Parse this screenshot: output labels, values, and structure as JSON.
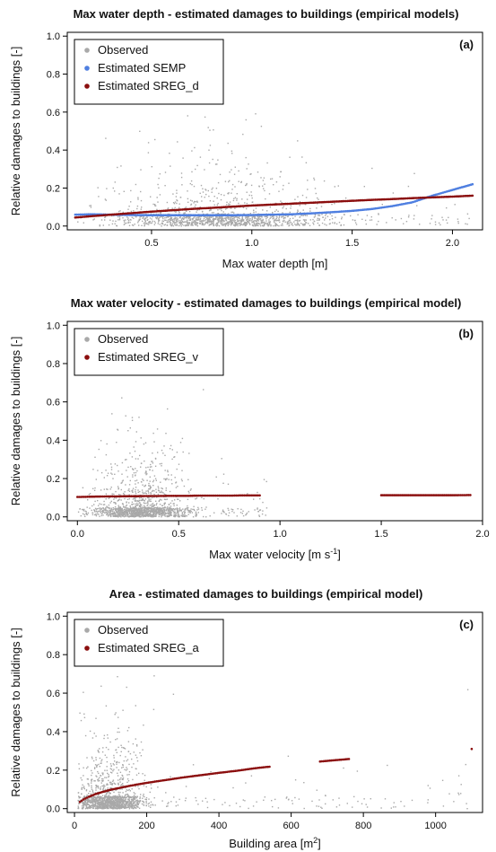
{
  "chart_data": [
    {
      "type": "scatter",
      "title": "Max water depth - estimated damages to buildings (empirical models)",
      "panel_label": "(a)",
      "xlabel": "Max water depth [m]",
      "xlabel_sup": "",
      "xlabel_tail": "",
      "ylabel": "Relative damages to buildings [-]",
      "xlim": [
        0.08,
        2.15
      ],
      "ylim": [
        -0.02,
        1.02
      ],
      "xticks": [
        0.5,
        1.0,
        1.5,
        2.0
      ],
      "xtick_labels": [
        "0.5",
        "1.0",
        "1.5",
        "2.0"
      ],
      "yticks": [
        0.0,
        0.2,
        0.4,
        0.6,
        0.8,
        1.0
      ],
      "ytick_labels": [
        "0.0",
        "0.2",
        "0.4",
        "0.6",
        "0.8",
        "1.0"
      ],
      "grid": false,
      "legend_position": "top-left",
      "series": [
        {
          "name": "Observed",
          "color": "#a9a9a9",
          "kind": "cloud",
          "cloud": {
            "n": 1500,
            "x_range": [
              0.12,
              2.1
            ],
            "x_center": 0.85,
            "x_spread": 0.38,
            "y_mode": 0.04,
            "y_max": 0.67
          }
        },
        {
          "name": "Estimated SEMP",
          "color": "#4f7fe0",
          "kind": "curve",
          "x": [
            0.12,
            0.2,
            0.3,
            0.4,
            0.5,
            0.6,
            0.7,
            0.8,
            0.9,
            1.0,
            1.1,
            1.2,
            1.3,
            1.4,
            1.5,
            1.6,
            1.7,
            1.8,
            1.9,
            2.0,
            2.1
          ],
          "y": [
            0.06,
            0.062,
            0.06,
            0.058,
            0.057,
            0.057,
            0.057,
            0.057,
            0.057,
            0.058,
            0.06,
            0.062,
            0.067,
            0.073,
            0.08,
            0.09,
            0.105,
            0.125,
            0.16,
            0.19,
            0.22
          ]
        },
        {
          "name": "Estimated SREG_d",
          "color": "#8b0e0e",
          "kind": "curve",
          "x": [
            0.12,
            0.2,
            0.3,
            0.4,
            0.5,
            0.6,
            0.7,
            0.8,
            0.9,
            1.0,
            1.1,
            1.2,
            1.3,
            1.4,
            1.5,
            1.6,
            1.7,
            1.8,
            1.9,
            2.0,
            2.1
          ],
          "y": [
            0.045,
            0.052,
            0.06,
            0.068,
            0.076,
            0.083,
            0.09,
            0.096,
            0.102,
            0.108,
            0.113,
            0.118,
            0.123,
            0.128,
            0.133,
            0.138,
            0.142,
            0.147,
            0.151,
            0.155,
            0.16
          ]
        }
      ]
    },
    {
      "type": "scatter",
      "title": "Max water velocity - estimated damages to buildings (empirical model)",
      "panel_label": "(b)",
      "xlabel": "Max water velocity [m s",
      "xlabel_sup": "-1",
      "xlabel_tail": "]",
      "ylabel": "Relative damages to buildings [-]",
      "xlim": [
        -0.05,
        2.0
      ],
      "ylim": [
        -0.02,
        1.02
      ],
      "xticks": [
        0.0,
        0.5,
        1.0,
        1.5,
        2.0
      ],
      "xtick_labels": [
        "0.0",
        "0.5",
        "1.0",
        "1.5",
        "2.0"
      ],
      "yticks": [
        0.0,
        0.2,
        0.4,
        0.6,
        0.8,
        1.0
      ],
      "ytick_labels": [
        "0.0",
        "0.2",
        "0.4",
        "0.6",
        "0.8",
        "1.0"
      ],
      "grid": false,
      "legend_position": "top-left",
      "series": [
        {
          "name": "Observed",
          "color": "#a9a9a9",
          "kind": "cloud",
          "cloud": {
            "n": 1500,
            "x_range": [
              0.0,
              0.95
            ],
            "x_center": 0.32,
            "x_spread": 0.16,
            "y_mode": 0.03,
            "y_max": 0.67
          }
        },
        {
          "name": "Estimated SREG_v",
          "color": "#8b0e0e",
          "kind": "curve",
          "x": [
            0.0,
            0.05,
            0.1,
            0.15,
            0.2,
            0.25,
            0.3,
            0.35,
            0.4,
            0.45,
            0.5,
            0.55,
            0.6,
            0.65,
            0.7,
            0.75,
            0.8,
            0.85,
            0.9,
            1.5,
            1.62,
            1.75,
            1.85,
            1.94
          ],
          "y": [
            0.104,
            0.105,
            0.106,
            0.107,
            0.107,
            0.108,
            0.108,
            0.109,
            0.109,
            0.11,
            0.11,
            0.11,
            0.111,
            0.111,
            0.111,
            0.111,
            0.112,
            0.112,
            0.112,
            0.113,
            0.113,
            0.113,
            0.113,
            0.114
          ]
        }
      ]
    },
    {
      "type": "scatter",
      "title": "Area - estimated damages to buildings (empirical model)",
      "panel_label": "(c)",
      "xlabel": "Building area [m",
      "xlabel_sup": "2",
      "xlabel_tail": "]",
      "ylabel": "Relative damages to buildings [-]",
      "xlim": [
        -20,
        1130
      ],
      "ylim": [
        -0.02,
        1.02
      ],
      "xticks": [
        0,
        200,
        400,
        600,
        800,
        1000
      ],
      "xtick_labels": [
        "0",
        "200",
        "400",
        "600",
        "800",
        "1000"
      ],
      "yticks": [
        0.0,
        0.2,
        0.4,
        0.6,
        0.8,
        1.0
      ],
      "ytick_labels": [
        "0.0",
        "0.2",
        "0.4",
        "0.6",
        "0.8",
        "1.0"
      ],
      "grid": false,
      "legend_position": "top-left",
      "series": [
        {
          "name": "Observed",
          "color": "#a9a9a9",
          "kind": "cloud",
          "cloud": {
            "n": 1500,
            "x_range": [
              10,
              1100
            ],
            "x_center": 95,
            "x_spread": 70,
            "y_mode": 0.04,
            "y_max": 0.69
          }
        },
        {
          "name": "Estimated SREG_a",
          "color": "#8b0e0e",
          "kind": "curve",
          "x": [
            15,
            25,
            40,
            60,
            80,
            100,
            130,
            160,
            200,
            250,
            300,
            350,
            400,
            450,
            500,
            540,
            680,
            760,
            1100
          ],
          "y": [
            0.035,
            0.048,
            0.062,
            0.077,
            0.088,
            0.098,
            0.11,
            0.121,
            0.134,
            0.148,
            0.162,
            0.174,
            0.186,
            0.197,
            0.21,
            0.218,
            0.245,
            0.258,
            0.31
          ]
        }
      ]
    }
  ]
}
